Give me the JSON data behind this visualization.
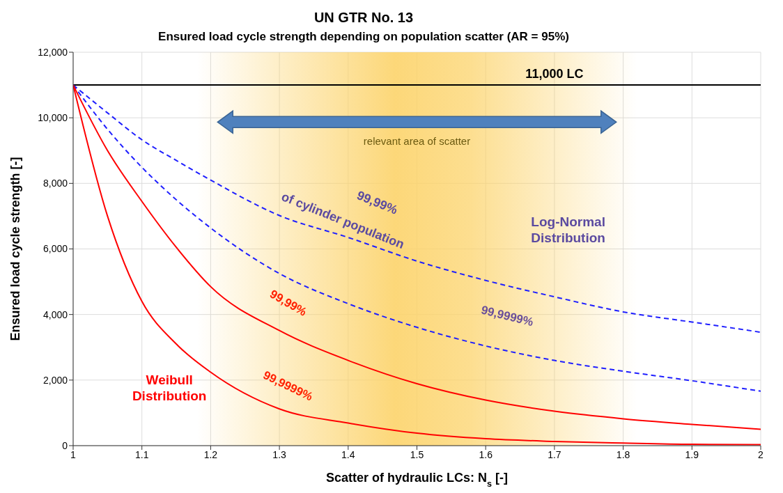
{
  "chart_data": {
    "type": "line",
    "title": "UN GTR No. 13",
    "subtitle": "Ensured load cycle strength depending on population scatter (AR = 95%)",
    "xlabel": "Scatter of hydraulic LCs: N$_{s}$  [-]",
    "ylabel": "Ensured  load  cycle  strength [-]",
    "x": [
      1,
      1.05,
      1.1,
      1.15,
      1.2,
      1.3,
      1.4,
      1.5,
      1.6,
      1.7,
      1.8,
      1.9,
      2
    ],
    "series": [
      {
        "color": "#1f1fff",
        "line_style": "dashed",
        "values": [
          11000,
          10150,
          9330,
          8700,
          8100,
          7020,
          6350,
          5630,
          5040,
          4540,
          4080,
          3770,
          3460
        ]
      },
      {
        "color": "#1f1fff",
        "line_style": "dashed",
        "values": [
          11000,
          9650,
          8490,
          7500,
          6640,
          5250,
          4330,
          3610,
          3040,
          2600,
          2270,
          1980,
          1660
        ]
      },
      {
        "color": "#ff0000",
        "line_style": "solid",
        "values": [
          11000,
          9000,
          7450,
          6050,
          4850,
          3510,
          2600,
          1890,
          1390,
          1050,
          820,
          650,
          500
        ]
      },
      {
        "color": "#ff0000",
        "line_style": "solid",
        "values": [
          11000,
          7000,
          4400,
          3100,
          2240,
          1120,
          690,
          380,
          210,
          130,
          80,
          40,
          30
        ]
      }
    ],
    "xlim": [
      1,
      2
    ],
    "xticks": [
      1,
      1.1,
      1.2,
      1.3,
      1.4,
      1.5,
      1.6,
      1.7,
      1.8,
      1.9,
      2
    ],
    "ylim": [
      0,
      12000
    ],
    "yticks": [
      0,
      {
        "value": 2000,
        "label": "2,000"
      },
      {
        "value": 4000,
        "label": "4,000"
      },
      {
        "value": 6000,
        "label": "6,000"
      },
      {
        "value": 8000,
        "label": "8,000"
      },
      {
        "value": 10000,
        "label": "10,000"
      },
      {
        "value": 12000,
        "label": "12,000"
      }
    ],
    "ref_lines": [
      {
        "axis": "y",
        "value": 11000,
        "label": "11,000 LC",
        "color": "#000000"
      }
    ],
    "bands": [
      {
        "axis": "x",
        "from": 1.18,
        "to": 1.82,
        "color": "#fcd36a"
      }
    ],
    "annotations": [
      "relevant area of scatter",
      "99,99%",
      "of cylinder population",
      "Log-Normal\nDistribution",
      "99,9999%",
      "99,99%",
      "99,9999%",
      "Weibull\nDistribution"
    ],
    "grid": true,
    "marker": "none"
  }
}
